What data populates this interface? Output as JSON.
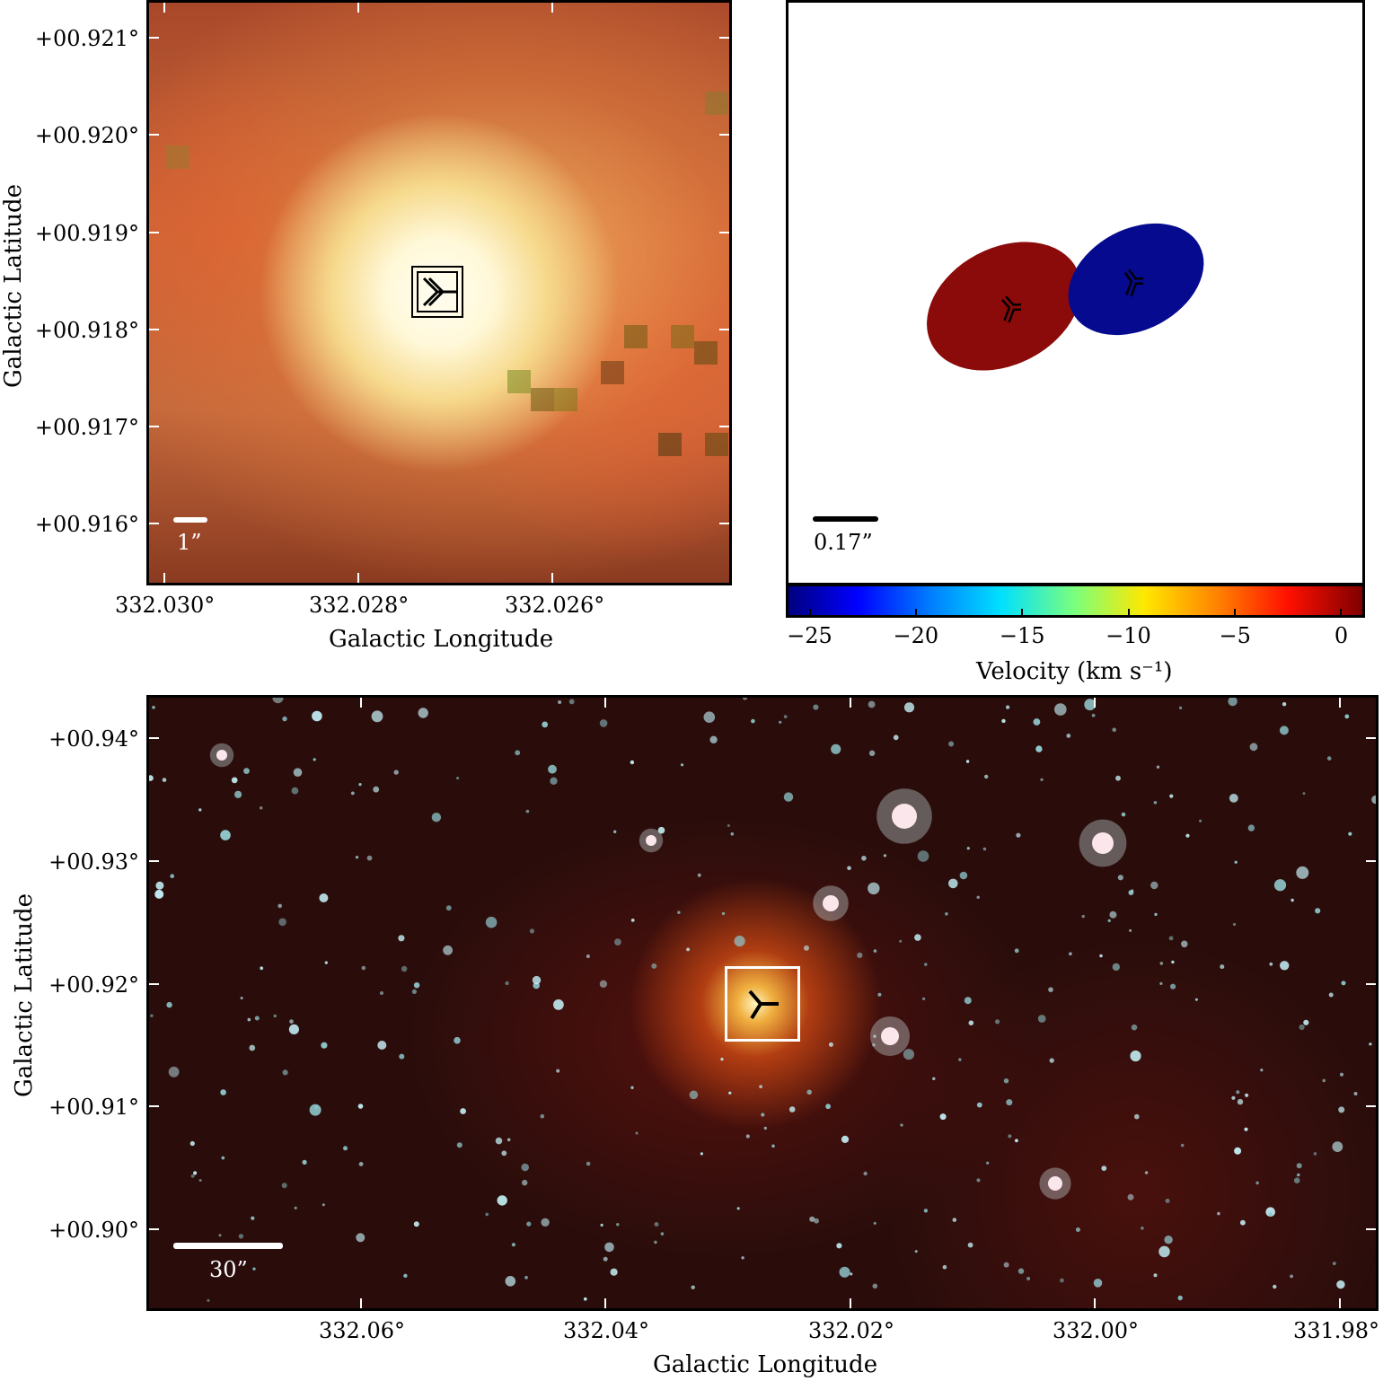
{
  "panel_tl": {
    "ylabel": "Galactic Latitude",
    "xlabel": "Galactic Longitude",
    "yticks": [
      "+00.921°",
      "+00.920°",
      "+00.919°",
      "+00.918°",
      "+00.917°",
      "+00.916°"
    ],
    "xticks": [
      "332.030°",
      "332.028°",
      "332.026°"
    ],
    "scalebar": "1”"
  },
  "panel_tr": {
    "scalebar": "0.17”",
    "colorbar_label": "Velocity (km s⁻¹)",
    "colorbar_ticks": [
      "−25",
      "−20",
      "−15",
      "−10",
      "−5",
      "0"
    ],
    "colorbar_range": [
      -26,
      1
    ],
    "spots": [
      {
        "name": "red-spot",
        "color": "#8b0a0a"
      },
      {
        "name": "blue-spot",
        "color": "#050a8f"
      }
    ]
  },
  "panel_bottom": {
    "ylabel": "Galactic Latitude",
    "xlabel": "Galactic Longitude",
    "yticks": [
      "+00.94°",
      "+00.93°",
      "+00.92°",
      "+00.91°",
      "+00.90°"
    ],
    "xticks": [
      "332.06°",
      "332.04°",
      "332.02°",
      "332.00°",
      "331.98°"
    ],
    "scalebar": "30”"
  }
}
